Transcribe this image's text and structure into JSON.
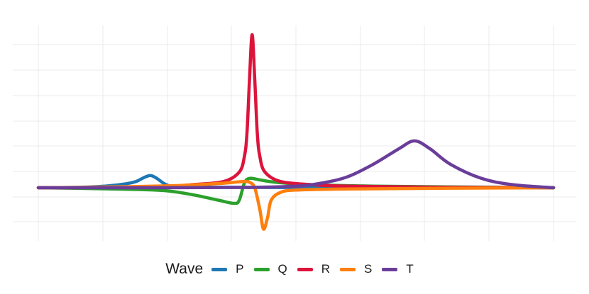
{
  "chart_data": {
    "type": "line",
    "title": "",
    "xlabel": "",
    "ylabel": "",
    "x_range": [
      0,
      1
    ],
    "y_range": [
      -0.3,
      1.2
    ],
    "grid": true,
    "legend_position": "bottom",
    "legend_title": "Wave",
    "series": [
      {
        "name": "P",
        "color": "#1f77b4",
        "points": [
          [
            0,
            0
          ],
          [
            0.08,
            0.003
          ],
          [
            0.13,
            0.01
          ],
          [
            0.17,
            0.025
          ],
          [
            0.19,
            0.04
          ],
          [
            0.205,
            0.065
          ],
          [
            0.218,
            0.078
          ],
          [
            0.23,
            0.06
          ],
          [
            0.245,
            0.025
          ],
          [
            0.26,
            0.01
          ],
          [
            0.3,
            0.004
          ],
          [
            0.4,
            0.002
          ],
          [
            0.6,
            0.001
          ],
          [
            1,
            0
          ]
        ]
      },
      {
        "name": "Q",
        "color": "#2ca02c",
        "points": [
          [
            0,
            0
          ],
          [
            0.1,
            -0.005
          ],
          [
            0.2,
            -0.012
          ],
          [
            0.25,
            -0.02
          ],
          [
            0.3,
            -0.045
          ],
          [
            0.35,
            -0.08
          ],
          [
            0.38,
            -0.1
          ],
          [
            0.39,
            -0.08
          ],
          [
            0.4,
            0.03
          ],
          [
            0.41,
            0.06
          ],
          [
            0.43,
            0.05
          ],
          [
            0.46,
            0.035
          ],
          [
            0.5,
            0.025
          ],
          [
            0.55,
            0.017
          ],
          [
            0.65,
            0.01
          ],
          [
            0.8,
            0.005
          ],
          [
            1,
            0
          ]
        ]
      },
      {
        "name": "R",
        "color": "#dc143c",
        "points": [
          [
            0,
            0
          ],
          [
            0.15,
            0.002
          ],
          [
            0.25,
            0.008
          ],
          [
            0.3,
            0.02
          ],
          [
            0.36,
            0.04
          ],
          [
            0.39,
            0.1
          ],
          [
            0.4,
            0.2
          ],
          [
            0.405,
            0.35
          ],
          [
            0.41,
            0.7
          ],
          [
            0.415,
            0.98
          ],
          [
            0.42,
            0.7
          ],
          [
            0.425,
            0.35
          ],
          [
            0.43,
            0.2
          ],
          [
            0.44,
            0.1
          ],
          [
            0.47,
            0.04
          ],
          [
            0.53,
            0.02
          ],
          [
            0.6,
            0.01
          ],
          [
            0.75,
            0.004
          ],
          [
            1,
            0
          ]
        ]
      },
      {
        "name": "S",
        "color": "#ff7f0e",
        "points": [
          [
            0,
            0
          ],
          [
            0.15,
            0.005
          ],
          [
            0.25,
            0.012
          ],
          [
            0.3,
            0.018
          ],
          [
            0.35,
            0.027
          ],
          [
            0.38,
            0.035
          ],
          [
            0.4,
            0.04
          ],
          [
            0.41,
            0.035
          ],
          [
            0.42,
            0.0
          ],
          [
            0.43,
            -0.14
          ],
          [
            0.437,
            -0.265
          ],
          [
            0.445,
            -0.19
          ],
          [
            0.452,
            -0.08
          ],
          [
            0.47,
            -0.03
          ],
          [
            0.5,
            -0.015
          ],
          [
            0.6,
            -0.008
          ],
          [
            0.8,
            -0.003
          ],
          [
            1,
            0
          ]
        ]
      },
      {
        "name": "T",
        "color": "#6a3d9a",
        "points": [
          [
            0,
            0
          ],
          [
            0.2,
            0.0
          ],
          [
            0.4,
            0.002
          ],
          [
            0.5,
            0.01
          ],
          [
            0.55,
            0.03
          ],
          [
            0.6,
            0.07
          ],
          [
            0.65,
            0.15
          ],
          [
            0.7,
            0.25
          ],
          [
            0.73,
            0.3
          ],
          [
            0.76,
            0.25
          ],
          [
            0.8,
            0.15
          ],
          [
            0.86,
            0.06
          ],
          [
            0.92,
            0.02
          ],
          [
            1,
            0
          ]
        ]
      }
    ]
  }
}
